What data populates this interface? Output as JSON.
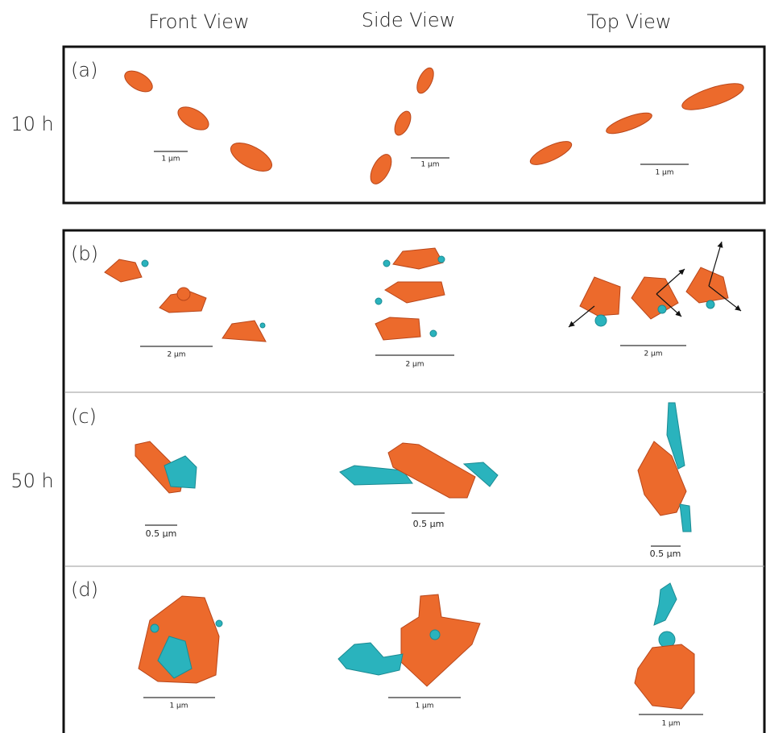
{
  "columns": [
    "Front View",
    "Side View",
    "Top View"
  ],
  "rows": [
    "10 h",
    "50 h"
  ],
  "panels": [
    {
      "label": "(a)",
      "scale_bars": [
        "1 µm",
        "1 µm",
        "1 µm"
      ]
    },
    {
      "label": "(b)",
      "scale_bars": [
        "2 µm",
        "2 µm",
        "2 µm"
      ]
    },
    {
      "label": "(c)",
      "scale_bars": [
        "0.5 µm",
        "0.5 µm",
        "0.5 µm"
      ]
    },
    {
      "label": "(d)",
      "scale_bars": [
        "1 µm",
        "1 µm",
        "1 µm"
      ]
    }
  ]
}
